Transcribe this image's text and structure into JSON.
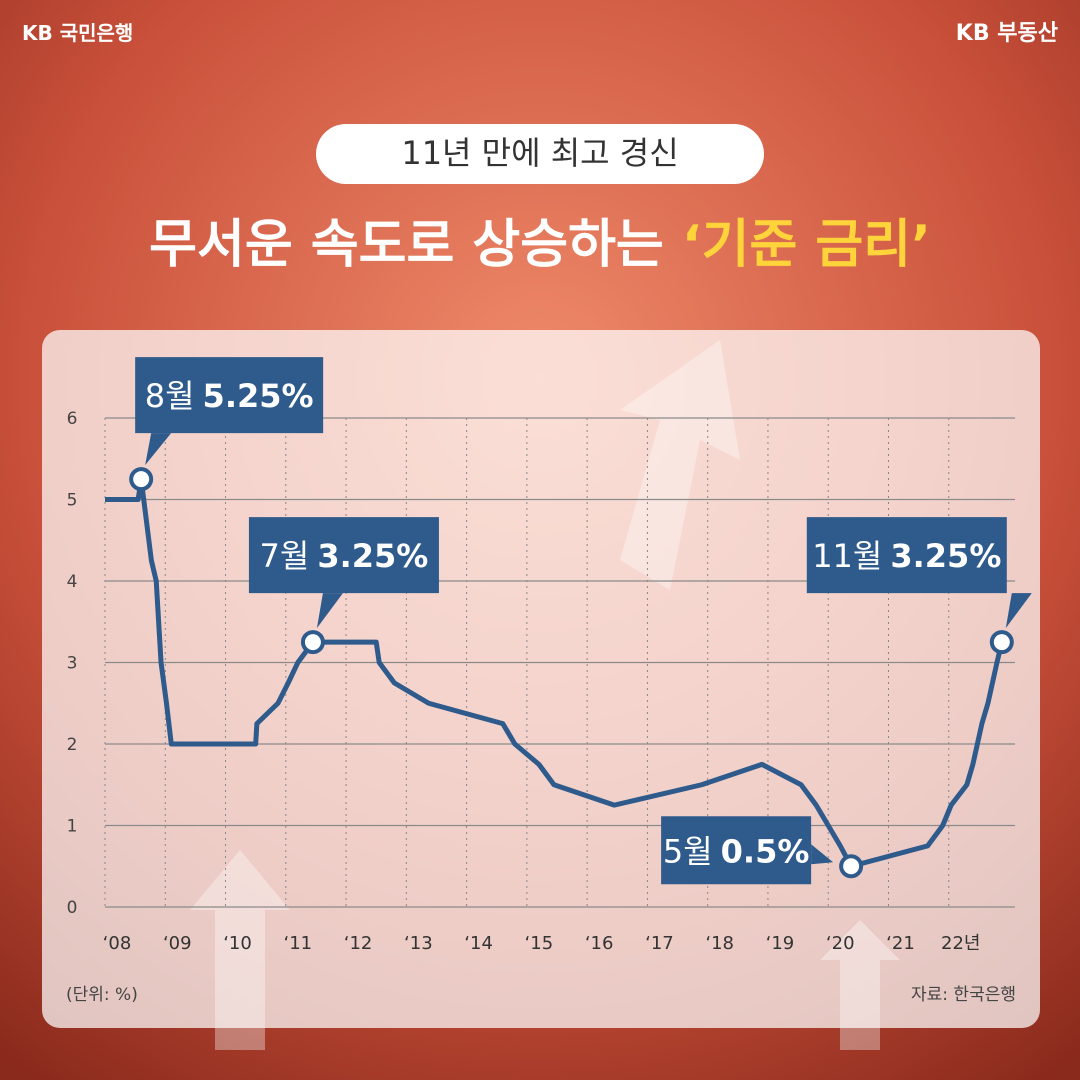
{
  "header": {
    "brand_left": "KB 국민은행",
    "brand_right": "KB 부동산",
    "badge": "11년 만에 최고 경신",
    "title_main": "무서운 속도로 상승하는 ",
    "title_highlight": "‘기준 금리’"
  },
  "chart_data": {
    "type": "line",
    "x": [
      2008.0,
      2008.55,
      2008.6,
      2008.77,
      2008.85,
      2008.93,
      2009.02,
      2009.1,
      2010.5,
      2010.52,
      2010.87,
      2011.04,
      2011.2,
      2011.45,
      2012.5,
      2012.55,
      2012.8,
      2013.37,
      2014.6,
      2014.8,
      2015.2,
      2015.45,
      2016.45,
      2017.9,
      2018.9,
      2019.55,
      2019.8,
      2020.2,
      2020.38,
      2021.65,
      2021.9,
      2022.04,
      2022.3,
      2022.4,
      2022.55,
      2022.65,
      2022.8,
      2022.88
    ],
    "series": [
      {
        "name": "기준 금리",
        "color": "#2e5a8c",
        "values": [
          5.0,
          5.0,
          5.25,
          4.25,
          4.0,
          3.0,
          2.5,
          2.0,
          2.0,
          2.25,
          2.5,
          2.75,
          3.0,
          3.25,
          3.25,
          3.0,
          2.75,
          2.5,
          2.25,
          2.0,
          1.75,
          1.5,
          1.25,
          1.5,
          1.75,
          1.5,
          1.25,
          0.75,
          0.5,
          0.75,
          1.0,
          1.25,
          1.5,
          1.75,
          2.25,
          2.5,
          3.0,
          3.25
        ]
      }
    ],
    "xlim": [
      2008.0,
      2022.9
    ],
    "xticks": [
      {
        "value": 2008,
        "label": "‘08"
      },
      {
        "value": 2009,
        "label": "‘09"
      },
      {
        "value": 2010,
        "label": "‘10"
      },
      {
        "value": 2011,
        "label": "‘11"
      },
      {
        "value": 2012,
        "label": "‘12"
      },
      {
        "value": 2013,
        "label": "‘13"
      },
      {
        "value": 2014,
        "label": "‘14"
      },
      {
        "value": 2015,
        "label": "‘15"
      },
      {
        "value": 2016,
        "label": "‘16"
      },
      {
        "value": 2017,
        "label": "‘17"
      },
      {
        "value": 2018,
        "label": "‘18"
      },
      {
        "value": 2019,
        "label": "‘19"
      },
      {
        "value": 2020,
        "label": "‘20"
      },
      {
        "value": 2021,
        "label": "‘21"
      },
      {
        "value": 2022,
        "label": "22년"
      }
    ],
    "ylim": [
      0,
      6
    ],
    "yticks": [
      0,
      1,
      2,
      3,
      4,
      5,
      6
    ],
    "grid": true,
    "annotations": [
      {
        "x": 2008.6,
        "value": 5.25,
        "month": "8월",
        "value_label": "5.25%"
      },
      {
        "x": 2011.45,
        "value": 3.25,
        "month": "7월",
        "value_label": "3.25%"
      },
      {
        "x": 2022.88,
        "value": 3.25,
        "month": "11월",
        "value_label": "3.25%"
      },
      {
        "x": 2020.38,
        "value": 0.5,
        "month": "5월",
        "value_label": "0.5%"
      }
    ],
    "unit_note": "(단위: %)",
    "source": "자료: 한국은행"
  }
}
